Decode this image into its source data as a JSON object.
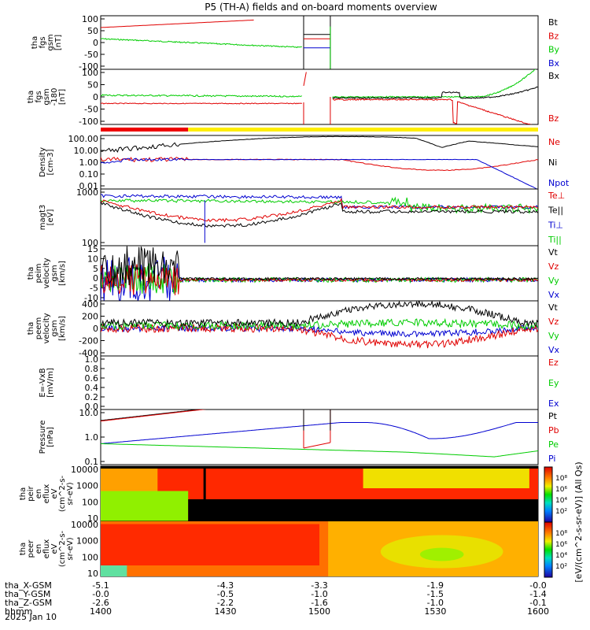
{
  "title": "P5 (TH-A) fields and on-board moments overview",
  "colors": {
    "black": "#000000",
    "red": "#e00000",
    "green": "#00cc00",
    "blue": "#0000d0",
    "bar_red": "#ee0000",
    "bar_yellow": "#ffee00"
  },
  "panels": [
    {
      "id": "fgs-hi",
      "ylabel": [
        "tha",
        "fgs",
        "gsm",
        "[nT]"
      ],
      "ticks": [
        "100",
        "50",
        "0",
        "-50",
        "-100"
      ],
      "legend": [
        {
          "text": "Bt",
          "color": "#000000"
        },
        {
          "text": "Bz",
          "color": "#e00000"
        },
        {
          "text": "By",
          "color": "#00cc00"
        },
        {
          "text": "Bx",
          "color": "#0000d0"
        }
      ]
    },
    {
      "id": "fgs-lo",
      "ylabel": [
        "tha",
        "fgs",
        "gsm",
        "-180",
        "[nT]"
      ],
      "ticks": [
        "100",
        "50",
        "0",
        "-50",
        "-100"
      ],
      "legend": [
        {
          "text": "Bx",
          "color": "#000000"
        },
        {
          "text": "Bz",
          "color": "#e00000"
        }
      ]
    },
    {
      "id": "density",
      "ylabel": [
        "Density",
        "[cm-3]"
      ],
      "ticks": [
        "100.00",
        "10.00",
        "1.00",
        "0.10",
        "0.01"
      ],
      "legend": [
        {
          "text": "Ne",
          "color": "#e00000"
        },
        {
          "text": "Ni",
          "color": "#000000"
        },
        {
          "text": "Npot",
          "color": "#0000d0"
        }
      ]
    },
    {
      "id": "temp",
      "ylabel": [
        "magt3",
        "[eV]"
      ],
      "ticks": [
        "1000",
        "100"
      ],
      "legend": [
        {
          "text": "Te⊥",
          "color": "#e00000"
        },
        {
          "text": "Te||",
          "color": "#000000"
        },
        {
          "text": "Ti⊥",
          "color": "#0000d0"
        },
        {
          "text": "Ti||",
          "color": "#00cc00"
        }
      ]
    },
    {
      "id": "peim",
      "ylabel": [
        "tha",
        "peim",
        "velocity",
        "gsm",
        "[km/s]"
      ],
      "ticks": [
        "15",
        "10",
        "5",
        "0",
        "-5",
        "-10"
      ],
      "legend": [
        {
          "text": "Vt",
          "color": "#000000"
        },
        {
          "text": "Vz",
          "color": "#e00000"
        },
        {
          "text": "Vy",
          "color": "#00cc00"
        },
        {
          "text": "Vx",
          "color": "#0000d0"
        }
      ]
    },
    {
      "id": "peem",
      "ylabel": [
        "tha",
        "peem",
        "velocity",
        "gsm",
        "[km/s]"
      ],
      "ticks": [
        "400",
        "200",
        "0",
        "-200",
        "-400"
      ],
      "legend": [
        {
          "text": "Vt",
          "color": "#000000"
        },
        {
          "text": "Vz",
          "color": "#e00000"
        },
        {
          "text": "Vy",
          "color": "#00cc00"
        },
        {
          "text": "Vx",
          "color": "#0000d0"
        }
      ]
    },
    {
      "id": "efield",
      "ylabel": [
        "E=-VxB",
        "[mV/m]"
      ],
      "ticks": [
        "1.0",
        "0.8",
        "0.6",
        "0.4",
        "0.2",
        "0.0"
      ],
      "legend": [
        {
          "text": "Ez",
          "color": "#e00000"
        },
        {
          "text": "Ey",
          "color": "#00cc00"
        },
        {
          "text": "Ex",
          "color": "#0000d0"
        }
      ]
    },
    {
      "id": "pressure",
      "ylabel": [
        "Pressure",
        "[nPa]"
      ],
      "ticks": [
        "10.0",
        "1.0",
        "0.1"
      ],
      "legend": [
        {
          "text": "Pt",
          "color": "#000000"
        },
        {
          "text": "Pb",
          "color": "#e00000"
        },
        {
          "text": "Pe",
          "color": "#00cc00"
        },
        {
          "text": "Pi",
          "color": "#0000d0"
        }
      ]
    },
    {
      "id": "peir",
      "ylabel": [
        "tha",
        "peir",
        "en",
        "eflux",
        "eV",
        "(cm^2-s-",
        "sr-eV)"
      ],
      "ticks": [
        "10000",
        "1000",
        "100",
        "10"
      ]
    },
    {
      "id": "peer",
      "ylabel": [
        "tha",
        "peer",
        "en",
        "eflux",
        "eV",
        "(cm^2-s-",
        "sr-eV)"
      ],
      "ticks": [
        "10000",
        "1000",
        "100",
        "10"
      ]
    }
  ],
  "colorbar": {
    "label": "[eV/(cm^2-s-sr-eV)] (All Qs)",
    "ticks_top": [
      "10⁸",
      "10⁶",
      "10⁴",
      "10²"
    ],
    "ticks_bottom": [
      "10⁸",
      "10⁶",
      "10⁴",
      "10²"
    ]
  },
  "xaxis": {
    "rows": [
      {
        "label": "tha_X-GSM",
        "values": [
          "-5.1",
          "-4.3",
          "-3.3",
          "-1.9",
          "-0.0"
        ]
      },
      {
        "label": "tha_Y-GSM",
        "values": [
          "-0.0",
          "-0.5",
          "-1.0",
          "-1.5",
          "-1.4"
        ]
      },
      {
        "label": "tha_Z-GSM",
        "values": [
          "-2.6",
          "-2.2",
          "-1.6",
          "-1.0",
          "-0.1"
        ]
      },
      {
        "label": "hhmm",
        "values": [
          "1400",
          "1430",
          "1500",
          "1530",
          "1600"
        ]
      }
    ],
    "date": "2025 Jan 10"
  },
  "chart_data": [
    {
      "type": "line",
      "title": "P5 (TH-A) fields and on-board moments overview",
      "ylabel": "tha fgs gsm [nT]",
      "ylim": [
        -100,
        100
      ],
      "xlabel": "hhmm",
      "x": [
        1400,
        1430,
        1500,
        1530,
        1600
      ],
      "series": [
        {
          "name": "Bt"
        },
        {
          "name": "Bz"
        },
        {
          "name": "By"
        },
        {
          "name": "Bx"
        }
      ]
    },
    {
      "type": "line",
      "ylabel": "tha fgs gsm -180 [nT]",
      "ylim": [
        -100,
        100
      ],
      "series": [
        {
          "name": "Bx"
        },
        {
          "name": "Bz"
        }
      ]
    },
    {
      "type": "line",
      "ylabel": "Density [cm-3]",
      "scale": "log",
      "ylim": [
        0.01,
        100
      ],
      "series": [
        {
          "name": "Ne"
        },
        {
          "name": "Ni"
        },
        {
          "name": "Npot"
        }
      ]
    },
    {
      "type": "line",
      "ylabel": "magt3 [eV]",
      "scale": "log",
      "series": [
        {
          "name": "Te⊥"
        },
        {
          "name": "Te||"
        },
        {
          "name": "Ti⊥"
        },
        {
          "name": "Ti||"
        }
      ]
    },
    {
      "type": "line",
      "ylabel": "tha peim velocity gsm [km/s]",
      "ylim": [
        -10,
        15
      ],
      "series": [
        {
          "name": "Vt"
        },
        {
          "name": "Vz"
        },
        {
          "name": "Vy"
        },
        {
          "name": "Vx"
        }
      ]
    },
    {
      "type": "line",
      "ylabel": "tha peem velocity gsm [km/s]",
      "ylim": [
        -400,
        400
      ],
      "series": [
        {
          "name": "Vt"
        },
        {
          "name": "Vz"
        },
        {
          "name": "Vy"
        },
        {
          "name": "Vx"
        }
      ]
    },
    {
      "type": "line",
      "ylabel": "E=-VxB [mV/m]",
      "ylim": [
        0,
        1
      ],
      "series": [
        {
          "name": "Ez"
        },
        {
          "name": "Ey"
        },
        {
          "name": "Ex"
        }
      ]
    },
    {
      "type": "line",
      "ylabel": "Pressure [nPa]",
      "scale": "log",
      "series": [
        {
          "name": "Pt"
        },
        {
          "name": "Pb"
        },
        {
          "name": "Pe"
        },
        {
          "name": "Pi"
        }
      ]
    },
    {
      "type": "heatmap",
      "ylabel": "tha peir en eflux eV (cm^2-s-sr-eV)",
      "scale": "log",
      "ylim": [
        10,
        10000
      ]
    },
    {
      "type": "heatmap",
      "ylabel": "tha peer en eflux eV (cm^2-s-sr-eV)",
      "scale": "log",
      "ylim": [
        10,
        10000
      ]
    }
  ]
}
